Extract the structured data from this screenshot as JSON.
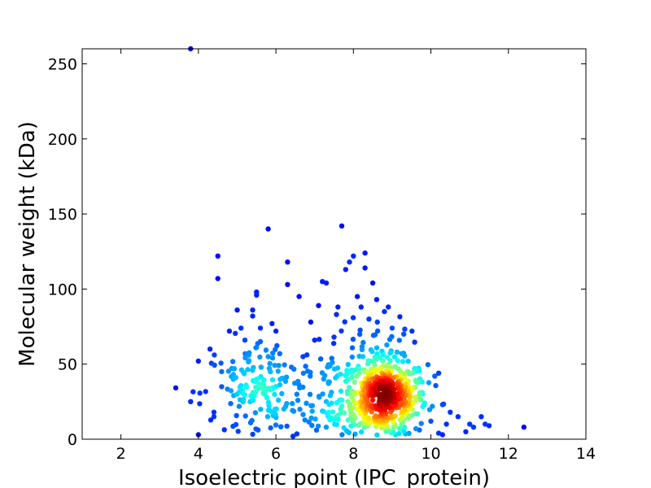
{
  "chart_data": {
    "type": "scatter",
    "title": "",
    "xlabel": "Isoelectric point (IPC_protein)",
    "ylabel": "Molecular weight (kDa)",
    "xlim": [
      1,
      14
    ],
    "ylim": [
      0,
      260
    ],
    "xticks": [
      "2",
      "4",
      "6",
      "8",
      "10",
      "12",
      "14"
    ],
    "yticks": [
      "0",
      "50",
      "100",
      "150",
      "200",
      "250"
    ],
    "grid": false,
    "legend": "none",
    "colormap": [
      "#00007f",
      "#0000ff",
      "#007fff",
      "#00ffff",
      "#7fff7f",
      "#ffff00",
      "#ff7f00",
      "#ff0000",
      "#7f0000"
    ],
    "points": [
      [
        3.8,
        260
      ],
      [
        3.8,
        25
      ],
      [
        4.0,
        52
      ],
      [
        4.0,
        3
      ],
      [
        4.3,
        60
      ],
      [
        4.4,
        18
      ],
      [
        4.5,
        122
      ],
      [
        4.5,
        107
      ],
      [
        4.4,
        15
      ],
      [
        4.6,
        45
      ],
      [
        4.6,
        35
      ],
      [
        4.8,
        72
      ],
      [
        4.9,
        40
      ],
      [
        5.0,
        30
      ],
      [
        5.0,
        86
      ],
      [
        5.1,
        74
      ],
      [
        5.2,
        66
      ],
      [
        5.3,
        56
      ],
      [
        5.4,
        82
      ],
      [
        5.4,
        86
      ],
      [
        5.5,
        96
      ],
      [
        5.5,
        98
      ],
      [
        5.6,
        74
      ],
      [
        5.6,
        65
      ],
      [
        5.8,
        140
      ],
      [
        5.8,
        55
      ],
      [
        5.9,
        77
      ],
      [
        6.0,
        72
      ],
      [
        6.1,
        57
      ],
      [
        6.3,
        118
      ],
      [
        6.3,
        103
      ],
      [
        6.4,
        48
      ],
      [
        6.6,
        95
      ],
      [
        6.7,
        55
      ],
      [
        6.9,
        78
      ],
      [
        7.0,
        66
      ],
      [
        7.1,
        89
      ],
      [
        7.2,
        105
      ],
      [
        7.3,
        104
      ],
      [
        7.5,
        68
      ],
      [
        7.6,
        88
      ],
      [
        7.7,
        142
      ],
      [
        7.8,
        113
      ],
      [
        7.9,
        118
      ],
      [
        8.0,
        122
      ],
      [
        8.1,
        95
      ],
      [
        8.2,
        88
      ],
      [
        8.3,
        124
      ],
      [
        8.3,
        114
      ],
      [
        8.4,
        80
      ],
      [
        8.5,
        104
      ],
      [
        8.6,
        93
      ],
      [
        8.8,
        85
      ],
      [
        8.9,
        88
      ],
      [
        9.0,
        74
      ],
      [
        9.3,
        70
      ],
      [
        9.4,
        45
      ],
      [
        9.6,
        28
      ],
      [
        9.8,
        22
      ],
      [
        10.0,
        12
      ],
      [
        10.1,
        42
      ],
      [
        10.2,
        44
      ],
      [
        10.3,
        23
      ],
      [
        10.4,
        10
      ],
      [
        10.5,
        18
      ],
      [
        10.7,
        15
      ],
      [
        10.9,
        5
      ],
      [
        11.0,
        10
      ],
      [
        11.1,
        8
      ],
      [
        11.3,
        15
      ],
      [
        11.4,
        10
      ],
      [
        11.5,
        9
      ],
      [
        12.4,
        8
      ],
      [
        10.2,
        4
      ],
      [
        10.3,
        3
      ],
      [
        8.7,
        24
      ],
      [
        8.8,
        26
      ],
      [
        8.9,
        22
      ],
      [
        8.8,
        20
      ],
      [
        8.7,
        28
      ],
      [
        9.0,
        25
      ],
      [
        8.6,
        22
      ],
      [
        8.9,
        30
      ],
      [
        8.5,
        26
      ],
      [
        9.1,
        21
      ]
    ]
  }
}
